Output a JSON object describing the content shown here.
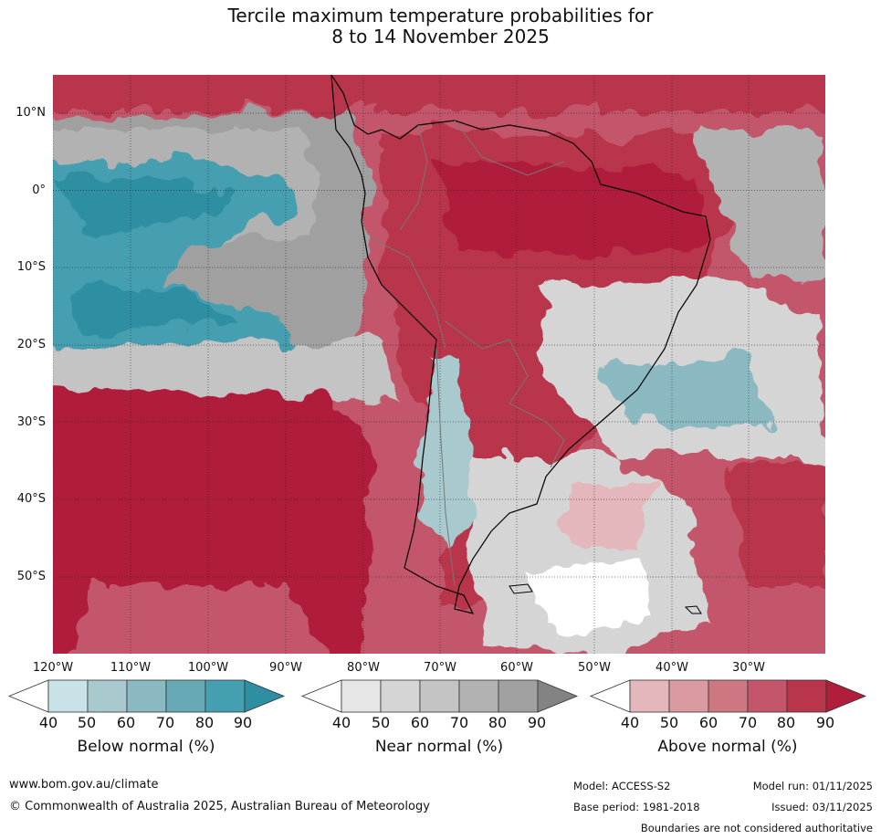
{
  "title": {
    "line1": "Tercile maximum temperature probabilities for",
    "line2": "8 to 14 November 2025"
  },
  "axes": {
    "latitudes": [
      "10°N",
      "0°",
      "10°S",
      "20°S",
      "30°S",
      "40°S",
      "50°S"
    ],
    "longitudes": [
      "120°W",
      "110°W",
      "100°W",
      "90°W",
      "80°W",
      "70°W",
      "60°W",
      "50°W",
      "40°W",
      "30°W"
    ]
  },
  "legend": {
    "below": {
      "label": "Below normal (%)",
      "ticks": [
        "40",
        "50",
        "60",
        "70",
        "80",
        "90"
      ],
      "colors": [
        "#ffffff",
        "#c9e2e8",
        "#a8c9ce",
        "#8ab9c1",
        "#67aab6",
        "#449fb0",
        "#2f8fa2"
      ]
    },
    "near": {
      "label": "Near normal (%)",
      "ticks": [
        "40",
        "50",
        "60",
        "70",
        "80",
        "90"
      ],
      "colors": [
        "#ffffff",
        "#e6e6e6",
        "#d5d5d5",
        "#c4c4c4",
        "#b2b2b2",
        "#a0a0a0",
        "#838383"
      ]
    },
    "above": {
      "label": "Above normal (%)",
      "ticks": [
        "40",
        "50",
        "60",
        "70",
        "80",
        "90"
      ],
      "colors": [
        "#ffffff",
        "#e3b7bb",
        "#d99aa2",
        "#cd7783",
        "#c3566a",
        "#b8354b",
        "#b01e3b"
      ]
    }
  },
  "footer": {
    "website": "www.bom.gov.au/climate",
    "copyright": "© Commonwealth of Australia 2025, Australian Bureau of Meteorology",
    "model": "Model: ACCESS-S2",
    "base_period": "Base period: 1981-2018",
    "model_run": "Model run: 01/11/2025",
    "issued": "Issued: 03/11/2025",
    "disclaimer": "Boundaries are not considered authoritative"
  }
}
